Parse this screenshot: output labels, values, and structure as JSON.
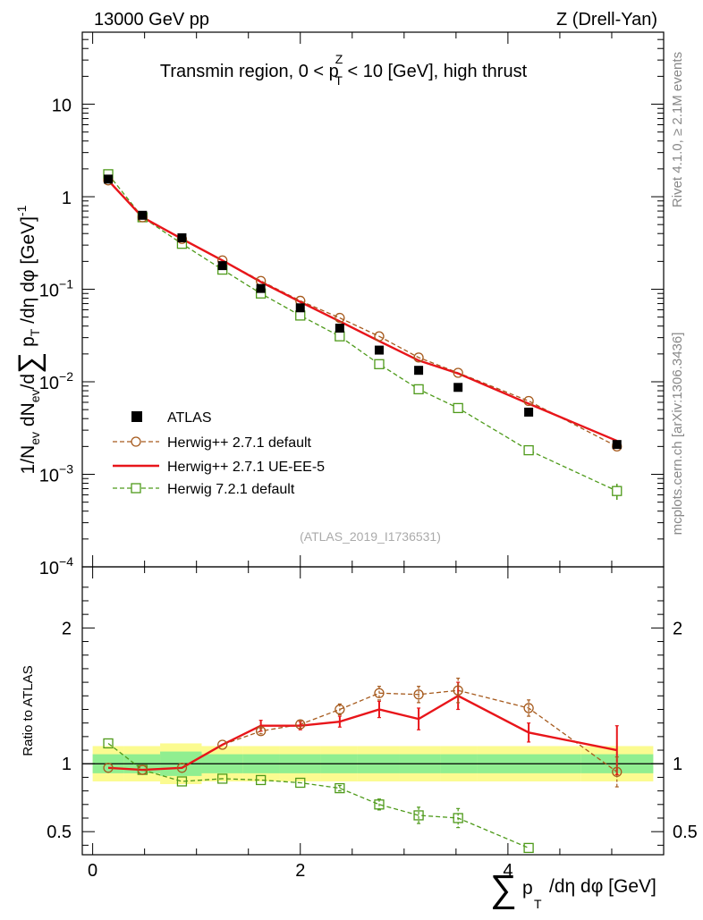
{
  "header": {
    "left": "13000 GeV pp",
    "right": "Z (Drell-Yan)"
  },
  "side_labels": {
    "rivet": "Rivet 4.1.0, ≥ 2.1M events",
    "mcplots": "mcplots.cern.ch [arXiv:1306.3436]"
  },
  "chart_data": {
    "type": "scatter",
    "title": "Transmin region, 0 < p_T^Z < 10 [GeV], high thrust",
    "title_parts": {
      "a": "Transmin region, 0 < p",
      "sup": "Z",
      "sub": "T",
      "b": " < 10 [GeV], high thrust"
    },
    "watermark": "(ATLAS_2019_I1736531)",
    "ylabel": "1/N_ev dN_ev/d∑ p_T /dη dφ [GeV]^-1",
    "ylabel_parts": {
      "a": "1/N",
      "a_sub": "ev",
      "b": " dN",
      "b_sub": "ev",
      "c": "/d",
      "sum": "∑",
      "d": " p",
      "d_sub": "T",
      "e": " /dη dφ  [GeV]",
      "e_sup": "-1"
    },
    "xlabel": "∑ p_T /dη dφ [GeV]",
    "xlabel_parts": {
      "sum": "∑",
      "p": "p",
      "sub": "T",
      "rest": "/dη dφ [GeV]"
    },
    "ratio_ylabel": "Ratio to ATLAS",
    "xlim": [
      -0.1,
      5.5
    ],
    "ylim_main": [
      0.0001,
      60
    ],
    "ylim_ratio": [
      0.33,
      2.45
    ],
    "x_ticks": [
      0,
      2,
      4
    ],
    "x_tick_labels": [
      "0",
      "2",
      "4"
    ],
    "main_y_ticks": [
      {
        "v": 10,
        "mant": "10",
        "exp": ""
      },
      {
        "v": 1,
        "mant": "1",
        "exp": ""
      },
      {
        "v": 0.1,
        "mant": "10",
        "exp": "−1"
      },
      {
        "v": 0.01,
        "mant": "10",
        "exp": "−2"
      },
      {
        "v": 0.001,
        "mant": "10",
        "exp": "−3"
      },
      {
        "v": 0.0001,
        "mant": "10",
        "exp": "−4"
      }
    ],
    "ratio_y_ticks": [
      {
        "v": 2,
        "label": "2"
      },
      {
        "v": 1,
        "label": "1"
      },
      {
        "v": 0.5,
        "label": "0.5"
      }
    ],
    "bin_edges": [
      0.0,
      0.3,
      0.65,
      1.05,
      1.45,
      1.8,
      2.2,
      2.55,
      2.95,
      3.35,
      3.7,
      4.7,
      5.4
    ],
    "series": [
      {
        "name": "ATLAS",
        "color": "#000000",
        "style": "data",
        "x": [
          0.15,
          0.48,
          0.86,
          1.25,
          1.62,
          2.0,
          2.38,
          2.76,
          3.14,
          3.52,
          4.2,
          5.05
        ],
        "y": [
          1.55,
          0.63,
          0.36,
          0.18,
          0.102,
          0.063,
          0.038,
          0.022,
          0.0133,
          0.0087,
          0.0047,
          0.0021
        ]
      },
      {
        "name": "Herwig++ 2.7.1 default",
        "color": "#a65a1d",
        "style": "circle-dashed",
        "x": [
          0.15,
          0.48,
          0.86,
          1.25,
          1.62,
          2.0,
          2.38,
          2.76,
          3.14,
          3.52,
          4.2,
          5.05
        ],
        "y": [
          1.5,
          0.6,
          0.35,
          0.205,
          0.123,
          0.075,
          0.049,
          0.031,
          0.0183,
          0.0125,
          0.0062,
          0.002
        ],
        "ratio": [
          0.97,
          0.955,
          0.97,
          1.14,
          1.24,
          1.29,
          1.4,
          1.52,
          1.51,
          1.54,
          1.41,
          0.94
        ],
        "ratio_err": [
          0,
          0,
          0,
          0,
          0.02,
          0.03,
          0.04,
          0.05,
          0.06,
          0.09,
          0.06,
          0.11
        ]
      },
      {
        "name": "Herwig++ 2.7.1 UE-EE-5",
        "color": "#e8151a",
        "style": "solid-line",
        "x": [
          0.15,
          0.48,
          0.86,
          1.25,
          1.62,
          2.0,
          2.38,
          2.76,
          3.14,
          3.52,
          4.2,
          5.05
        ],
        "y": [
          1.5,
          0.6,
          0.35,
          0.205,
          0.12,
          0.073,
          0.045,
          0.0275,
          0.017,
          0.0123,
          0.0058,
          0.0023
        ],
        "ratio": [
          0.97,
          0.955,
          0.97,
          1.14,
          1.28,
          1.28,
          1.31,
          1.4,
          1.33,
          1.5,
          1.23,
          1.1
        ],
        "ratio_err": [
          0,
          0,
          0,
          0,
          0.04,
          0.03,
          0.04,
          0.06,
          0.08,
          0.1,
          0.07,
          0.18
        ]
      },
      {
        "name": "Herwig 7.2.1 default",
        "color": "#4e9a1a",
        "style": "square-dashed",
        "x": [
          0.15,
          0.48,
          0.86,
          1.25,
          1.62,
          2.0,
          2.38,
          2.76,
          3.14,
          3.52,
          4.2,
          5.05
        ],
        "y": [
          1.75,
          0.6,
          0.31,
          0.163,
          0.09,
          0.052,
          0.031,
          0.0155,
          0.0083,
          0.0052,
          0.00182,
          0.00066
        ],
        "y_err": [
          0,
          0,
          0,
          0,
          0,
          0,
          0,
          0,
          0,
          0,
          0,
          0.00013
        ],
        "ratio": [
          1.15,
          0.955,
          0.87,
          0.89,
          0.88,
          0.86,
          0.82,
          0.7,
          0.62,
          0.6,
          0.38
        ],
        "ratio_err": [
          0,
          0,
          0,
          0,
          0,
          0,
          0.02,
          0.04,
          0.06,
          0.07,
          0
        ]
      }
    ],
    "data_band": {
      "stat": [
        0.07,
        0.07,
        0.09,
        0.07,
        0.07,
        0.07,
        0.07,
        0.07,
        0.07,
        0.07,
        0.07,
        0.07
      ],
      "total": [
        0.13,
        0.13,
        0.15,
        0.13,
        0.13,
        0.13,
        0.13,
        0.13,
        0.13,
        0.13,
        0.13,
        0.13
      ]
    }
  }
}
